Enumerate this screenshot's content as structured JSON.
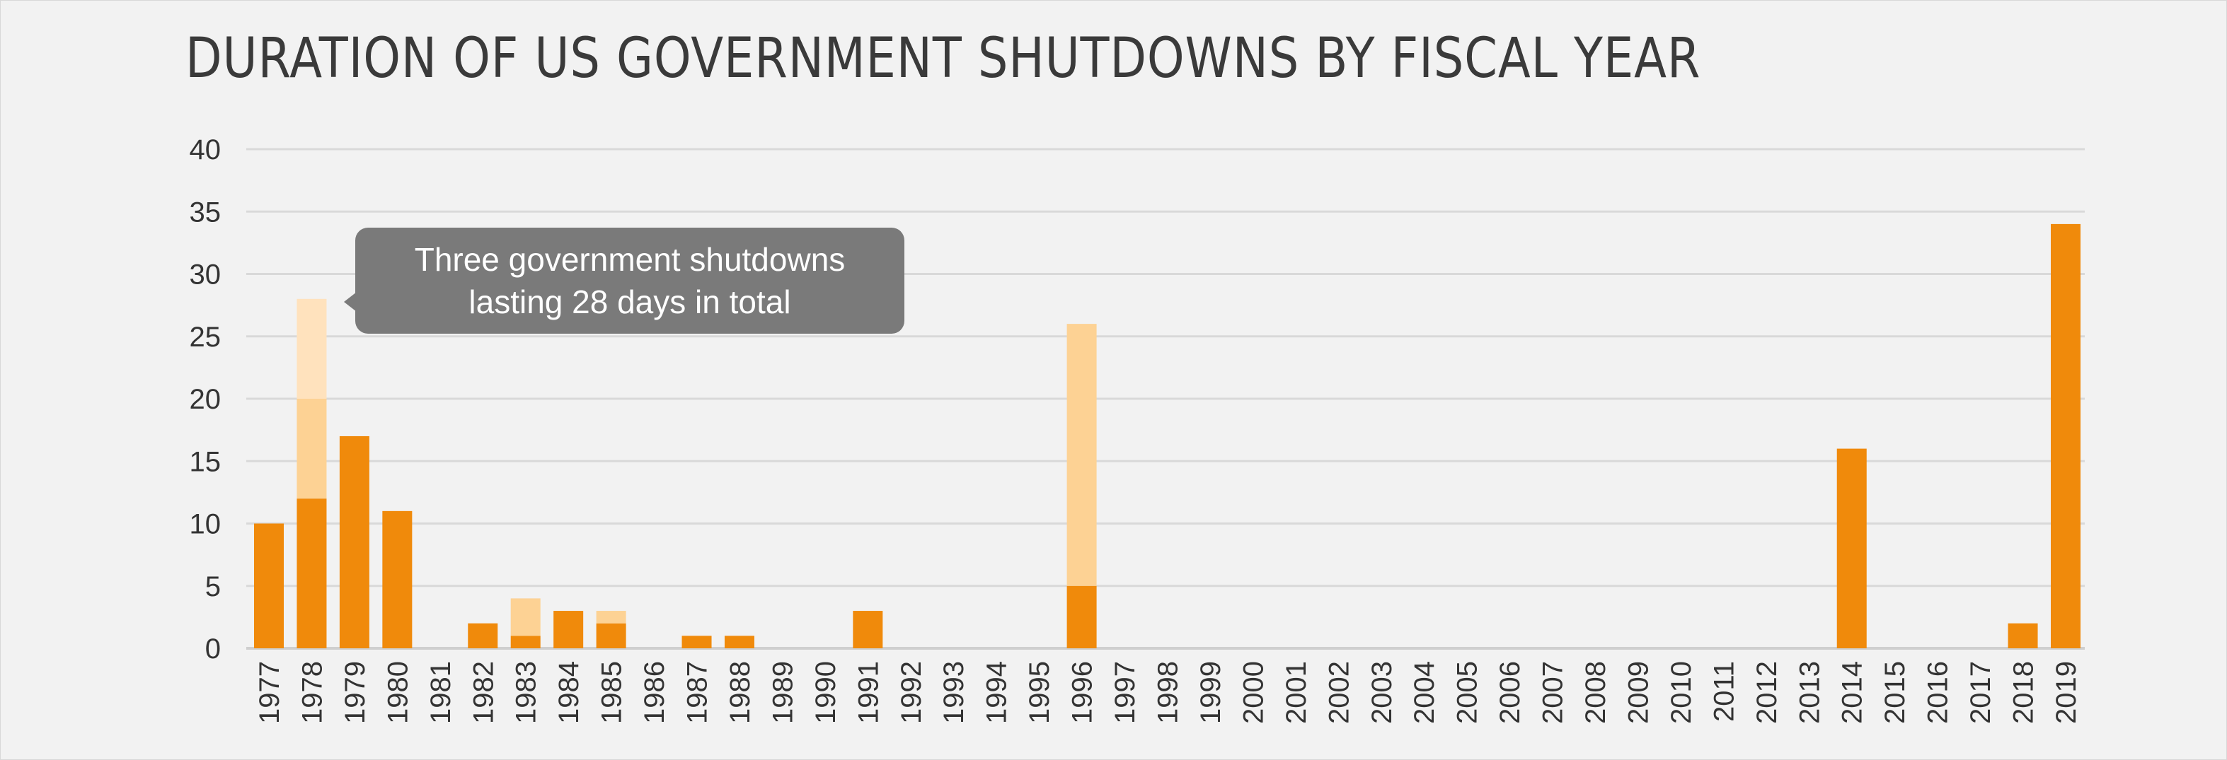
{
  "title": "DURATION OF US GOVERNMENT SHUTDOWNS BY FISCAL YEAR",
  "tooltip": {
    "line1": "Three government shutdowns",
    "line2": "lasting 28 days in total"
  },
  "colors": {
    "background": "#f2f2f2",
    "grid": "#d9d9d9",
    "dark_orange": "#f08a0b",
    "light_orange": "#fdd294",
    "pale_orange": "#ffe2bd",
    "tooltip_bg": "#7a7a7a"
  },
  "chart_data": {
    "type": "bar",
    "stacked": true,
    "title": "DURATION OF US GOVERNMENT SHUTDOWNS BY FISCAL YEAR",
    "xlabel": "",
    "ylabel": "",
    "ylim": [
      0,
      40
    ],
    "yticks": [
      0,
      5,
      10,
      15,
      20,
      25,
      30,
      35,
      40
    ],
    "grid": true,
    "legend": "none",
    "categories": [
      "1977",
      "1978",
      "1979",
      "1980",
      "1981",
      "1982",
      "1983",
      "1984",
      "1985",
      "1986",
      "1987",
      "1988",
      "1989",
      "1990",
      "1991",
      "1992",
      "1993",
      "1994",
      "1995",
      "1996",
      "1997",
      "1998",
      "1999",
      "2000",
      "2001",
      "2002",
      "2003",
      "2004",
      "2005",
      "2006",
      "2007",
      "2008",
      "2009",
      "2010",
      "2011",
      "2012",
      "2013",
      "2014",
      "2015",
      "2016",
      "2017",
      "2018",
      "2019"
    ],
    "series": [
      {
        "color": "#f08a0b",
        "values": [
          10,
          12,
          17,
          11,
          0,
          2,
          1,
          3,
          2,
          0,
          1,
          1,
          0,
          0,
          3,
          0,
          0,
          0,
          0,
          5,
          0,
          0,
          0,
          0,
          0,
          0,
          0,
          0,
          0,
          0,
          0,
          0,
          0,
          0,
          0,
          0,
          0,
          16,
          0,
          0,
          0,
          2,
          34
        ]
      },
      {
        "color": "#fdd294",
        "values": [
          0,
          8,
          0,
          0,
          0,
          0,
          3,
          0,
          1,
          0,
          0,
          0,
          0,
          0,
          0,
          0,
          0,
          0,
          0,
          21,
          0,
          0,
          0,
          0,
          0,
          0,
          0,
          0,
          0,
          0,
          0,
          0,
          0,
          0,
          0,
          0,
          0,
          0,
          0,
          0,
          0,
          0,
          0
        ]
      },
      {
        "color": "#ffe2bd",
        "values": [
          0,
          8,
          0,
          0,
          0,
          0,
          0,
          0,
          0,
          0,
          0,
          0,
          0,
          0,
          0,
          0,
          0,
          0,
          0,
          0,
          0,
          0,
          0,
          0,
          0,
          0,
          0,
          0,
          0,
          0,
          0,
          0,
          0,
          0,
          0,
          0,
          0,
          0,
          0,
          0,
          0,
          0,
          0
        ]
      }
    ],
    "annotations": [
      {
        "category": "1978",
        "text": "Three government shutdowns lasting 28 days in total"
      }
    ]
  }
}
